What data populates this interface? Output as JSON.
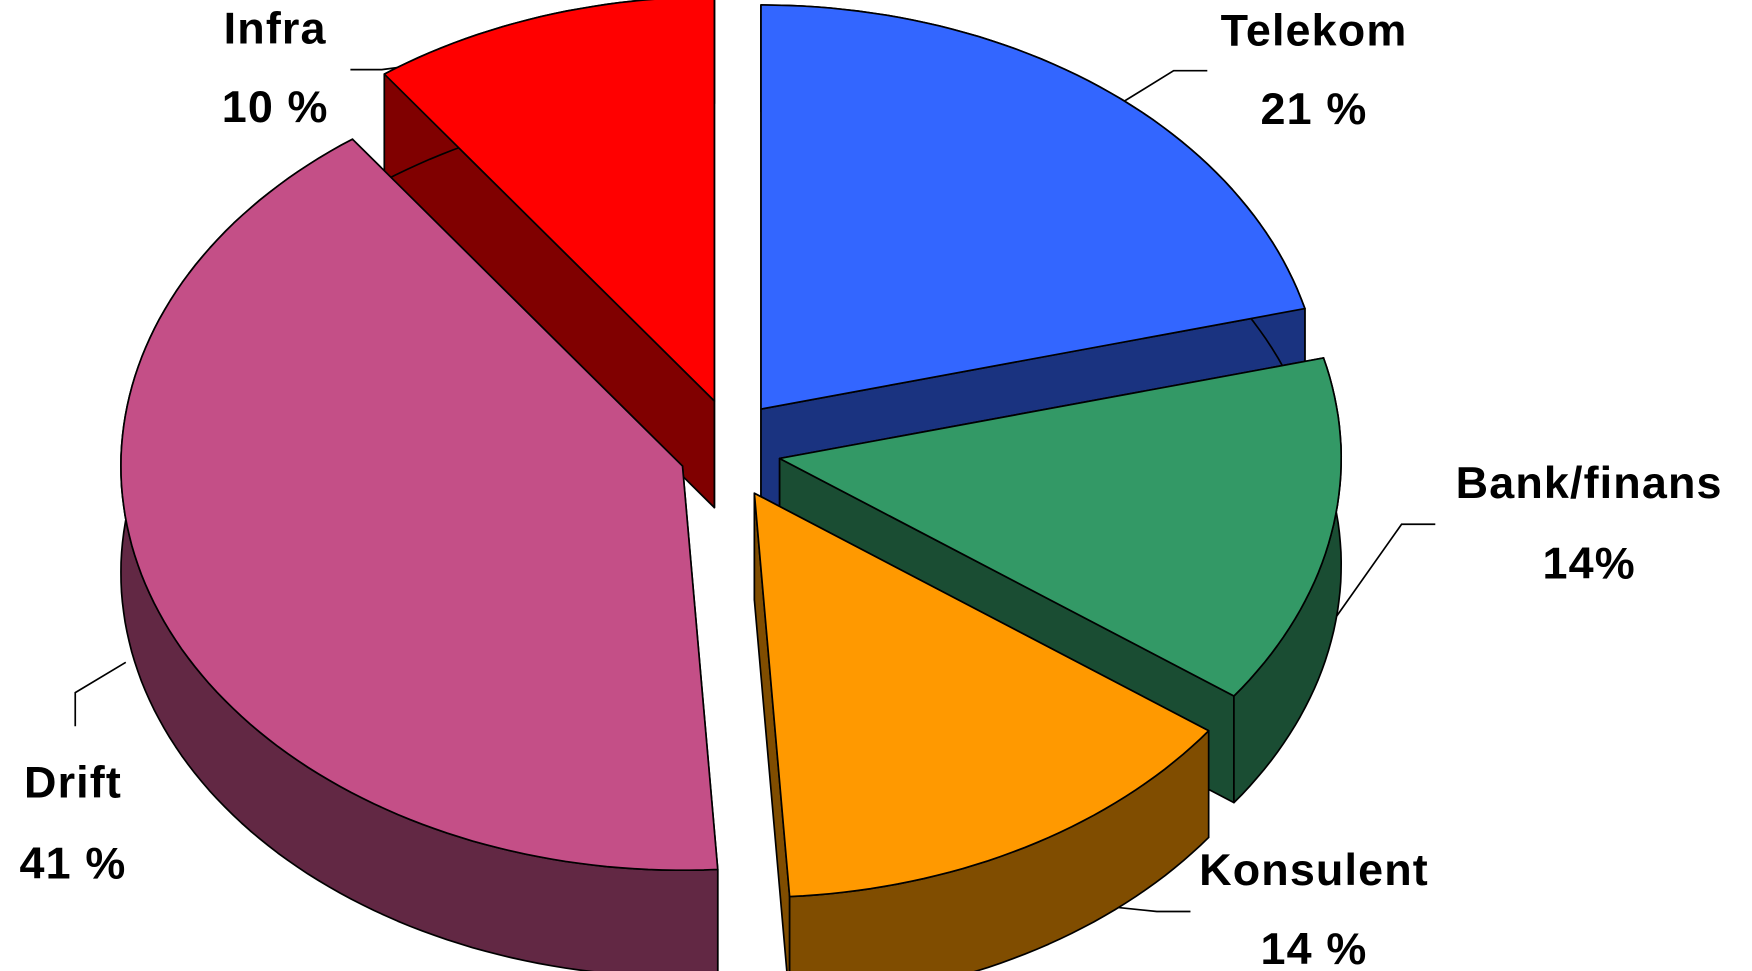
{
  "chart_data": {
    "type": "pie",
    "categories": [
      "Telekom",
      "Bank/finans",
      "Konsulent",
      "Drift",
      "Infra"
    ],
    "values": [
      21,
      14,
      14,
      41,
      10
    ],
    "value_labels": [
      "21 %",
      "14%",
      "14 %",
      "41 %",
      "10 %"
    ],
    "colors": [
      "#3366ff",
      "#339966",
      "#ff9900",
      "#c44f87",
      "#ff0000"
    ],
    "three_d": true,
    "exploded": true
  }
}
